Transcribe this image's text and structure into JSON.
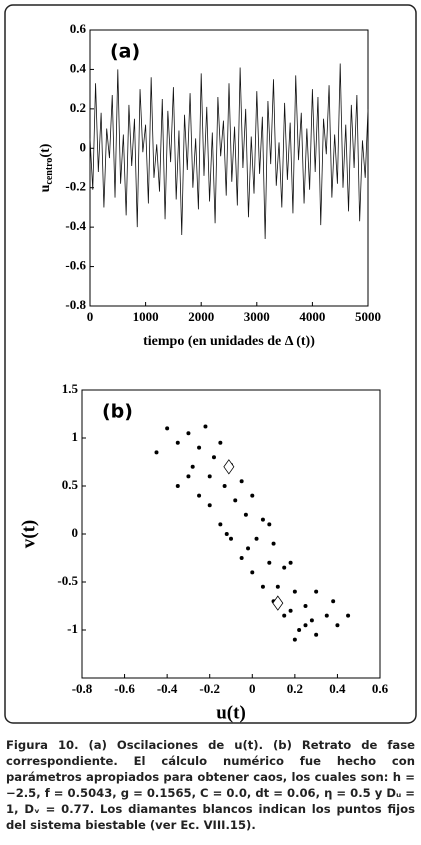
{
  "chart_data": [
    {
      "type": "line",
      "annotation": "(a)",
      "ylabel": [
        "u",
        "centro",
        "(t)"
      ],
      "xlabel": "tiempo (en unidades de Δ (t))",
      "xlim": [
        0,
        5000
      ],
      "xticks": [
        0,
        1000,
        2000,
        3000,
        4000,
        5000
      ],
      "ylim": [
        -0.8,
        0.6
      ],
      "yticks": [
        -0.8,
        -0.6,
        -0.4,
        -0.2,
        0,
        0.2,
        0.4,
        0.6
      ],
      "series": [
        {
          "color": "#111111",
          "x": [
            0,
            50,
            100,
            150,
            200,
            250,
            300,
            350,
            400,
            450,
            500,
            550,
            600,
            650,
            700,
            750,
            800,
            850,
            900,
            950,
            1000,
            1050,
            1100,
            1150,
            1200,
            1250,
            1300,
            1350,
            1400,
            1450,
            1500,
            1550,
            1600,
            1650,
            1700,
            1750,
            1800,
            1850,
            1900,
            1950,
            2000,
            2050,
            2100,
            2150,
            2200,
            2250,
            2300,
            2350,
            2400,
            2450,
            2500,
            2550,
            2600,
            2650,
            2700,
            2750,
            2800,
            2850,
            2900,
            2950,
            3000,
            3050,
            3100,
            3150,
            3200,
            3250,
            3300,
            3350,
            3400,
            3450,
            3500,
            3550,
            3600,
            3650,
            3700,
            3750,
            3800,
            3850,
            3900,
            3950,
            4000,
            4050,
            4100,
            4150,
            4200,
            4250,
            4300,
            4350,
            4400,
            4450,
            4500,
            4550,
            4600,
            4650,
            4700,
            4750,
            4800,
            4850,
            4900,
            4950,
            5000
          ],
          "values": [
            0.05,
            -0.21,
            0.33,
            -0.12,
            0.18,
            -0.3,
            0.1,
            -0.05,
            0.27,
            -0.25,
            0.4,
            -0.18,
            0.07,
            -0.34,
            0.22,
            -0.09,
            0.15,
            -0.4,
            0.3,
            -0.02,
            0.12,
            -0.28,
            0.36,
            -0.15,
            0.02,
            -0.22,
            0.25,
            -0.36,
            0.19,
            -0.07,
            0.31,
            -0.26,
            0.09,
            -0.44,
            0.17,
            -0.11,
            0.28,
            -0.2,
            0.05,
            -0.31,
            0.38,
            -0.14,
            0.21,
            -0.27,
            0.08,
            -0.38,
            0.26,
            -0.04,
            0.14,
            -0.24,
            0.33,
            -0.17,
            0.11,
            -0.29,
            0.41,
            -0.1,
            0.2,
            -0.35,
            0.06,
            -0.23,
            0.29,
            -0.13,
            0.16,
            -0.46,
            0.24,
            -0.08,
            0.35,
            -0.19,
            0.03,
            -0.3,
            0.23,
            -0.16,
            0.13,
            -0.33,
            0.37,
            -0.06,
            0.18,
            -0.28,
            0.1,
            -0.21,
            0.3,
            -0.12,
            0.26,
            -0.39,
            0.15,
            -0.03,
            0.32,
            -0.25,
            0.07,
            -0.18,
            0.43,
            -0.2,
            0.12,
            -0.32,
            0.22,
            -0.1,
            0.27,
            -0.37,
            0.04,
            -0.15,
            0.2
          ]
        }
      ]
    },
    {
      "type": "scatter",
      "annotation": "(b)",
      "xlabel": "u(t)",
      "ylabel": "v(t)",
      "xlim": [
        -0.8,
        0.6
      ],
      "xticks": [
        -0.8,
        -0.6,
        -0.4,
        -0.2,
        0,
        0.2,
        0.4,
        0.6
      ],
      "ylim": [
        -1.5,
        1.5
      ],
      "yticks": [
        -1,
        -0.5,
        0,
        0.5,
        1,
        1.5
      ],
      "series": [
        {
          "color": "#000000",
          "marker": "dot",
          "x": [
            -0.45,
            -0.4,
            -0.35,
            -0.3,
            -0.28,
            -0.25,
            -0.22,
            -0.2,
            -0.18,
            -0.15,
            -0.13,
            -0.1,
            -0.08,
            -0.05,
            -0.03,
            0,
            0.02,
            0.05,
            0.08,
            0.1,
            0.12,
            0.15,
            0.18,
            0.2,
            0.22,
            0.25,
            0.28,
            0.3,
            0.35,
            0.4,
            -0.3,
            -0.25,
            -0.2,
            -0.15,
            -0.1,
            -0.05,
            0,
            0.05,
            0.1,
            0.15,
            0.2,
            0.25,
            0.3,
            0.38,
            0.45,
            -0.35,
            -0.12,
            -0.02,
            0.08,
            0.18
          ],
          "values": [
            0.85,
            1.1,
            0.95,
            1.05,
            0.7,
            0.9,
            1.12,
            0.6,
            0.8,
            0.95,
            0.5,
            0.72,
            0.35,
            0.55,
            0.2,
            0.4,
            -0.05,
            0.15,
            -0.3,
            -0.1,
            -0.55,
            -0.35,
            -0.8,
            -0.6,
            -1.0,
            -0.75,
            -0.9,
            -1.05,
            -0.85,
            -0.95,
            0.6,
            0.4,
            0.3,
            0.1,
            -0.05,
            -0.25,
            -0.4,
            -0.55,
            -0.7,
            -0.85,
            -1.1,
            -0.95,
            -0.6,
            -0.7,
            -0.85,
            0.5,
            0.0,
            -0.15,
            0.1,
            -0.3
          ]
        },
        {
          "color": "#ffffff",
          "marker": "diamond",
          "x": [
            -0.11,
            0.12
          ],
          "values": [
            0.7,
            -0.72
          ]
        }
      ]
    }
  ],
  "caption": "Figura 10. (a) Oscilaciones de u(t). (b) Retrato de fase correspondiente. El cálculo numérico fue hecho con parámetros apropiados para obtener caos, los cuales son: h = −2.5, f = 0.5043, g = 0.1565, C = 0.0, dt = 0.06, η = 0.5 y Dᵤ = 1, Dᵥ = 0.77. Los diamantes blancos indican los puntos fijos del sistema biestable (ver Ec. VIII.15)."
}
